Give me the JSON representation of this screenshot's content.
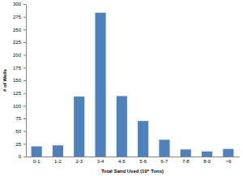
{
  "chart_data": {
    "type": "bar",
    "x_label": "Total Sand Used (10⁶ Tons)",
    "y_label": "# of Wells",
    "categories": [
      "0-1",
      "1-2",
      "2-3",
      "3-4",
      "4-5",
      "5-6",
      "6-7",
      "7-8",
      "8-9",
      ">9"
    ],
    "values": [
      20,
      22,
      118,
      283,
      119,
      70,
      33,
      14,
      10,
      15
    ],
    "color": "#4f81bd",
    "ylim": [
      0,
      300
    ],
    "yticks": [
      0,
      25,
      50,
      75,
      100,
      125,
      150,
      175,
      200,
      225,
      250,
      275,
      300
    ],
    "grid": false
  }
}
